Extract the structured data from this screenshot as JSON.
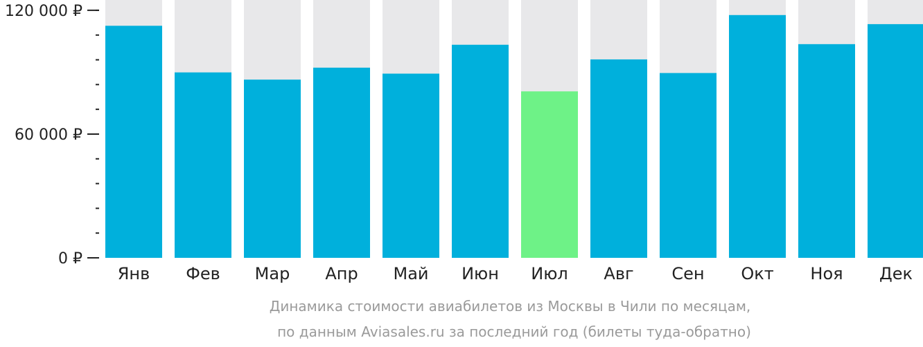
{
  "chart_data": {
    "type": "bar",
    "categories": [
      "Янв",
      "Фев",
      "Мар",
      "Апр",
      "Май",
      "Июн",
      "Июл",
      "Авг",
      "Сен",
      "Окт",
      "Ноя",
      "Дек"
    ],
    "values": [
      112500,
      89900,
      86400,
      92200,
      89300,
      103300,
      80700,
      96200,
      89600,
      117700,
      103600,
      113300
    ],
    "ylim": [
      0,
      125000
    ],
    "y_ticks": [
      {
        "value": 0,
        "label": "0 ₽"
      },
      {
        "value": 60000,
        "label": "60 000 ₽"
      },
      {
        "value": 120000,
        "label": "120 000 ₽"
      }
    ],
    "y_minor_tick_step": 12000,
    "highlight_index": 6,
    "colors": {
      "bar": "#00b0dc",
      "bar_highlight": "#6ef287",
      "bar_background": "#e8e8ea",
      "axis": "#222222"
    },
    "grid": false,
    "legend": "none"
  },
  "caption": {
    "line1": "Динамика стоимости авиабилетов из Москвы в Чили по месяцам,",
    "line2": "по данным Aviasales.ru за последний год (билеты туда-обратно)"
  }
}
